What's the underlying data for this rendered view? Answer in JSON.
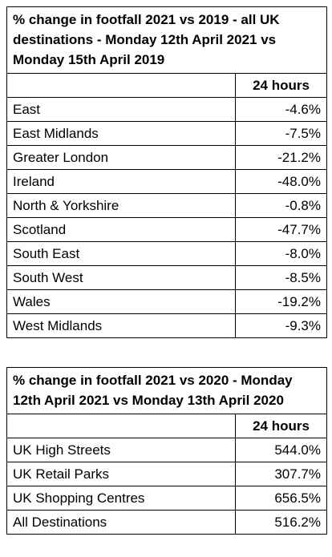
{
  "tables": [
    {
      "title": "% change in footfall 2021 vs 2019 - all UK destinations - Monday 12th April 2021 vs Monday 15th April 2019",
      "header": "24 hours",
      "rows": [
        [
          "East",
          "-4.6%"
        ],
        [
          "East Midlands",
          "-7.5%"
        ],
        [
          "Greater London",
          "-21.2%"
        ],
        [
          "Ireland",
          "-48.0%"
        ],
        [
          "North & Yorkshire",
          "-0.8%"
        ],
        [
          "Scotland",
          "-47.7%"
        ],
        [
          "South East",
          "-8.0%"
        ],
        [
          "South West",
          "-8.5%"
        ],
        [
          "Wales",
          "-19.2%"
        ],
        [
          "West Midlands",
          "-9.3%"
        ]
      ]
    },
    {
      "title": "% change in footfall 2021 vs 2020  - Monday 12th April 2021 vs Monday 13th April 2020",
      "header": "24 hours",
      "rows": [
        [
          "UK High Streets",
          "544.0%"
        ],
        [
          "UK Retail Parks",
          "307.7%"
        ],
        [
          "UK Shopping Centres",
          "656.5%"
        ],
        [
          "All Destinations",
          "516.2%"
        ]
      ]
    }
  ]
}
